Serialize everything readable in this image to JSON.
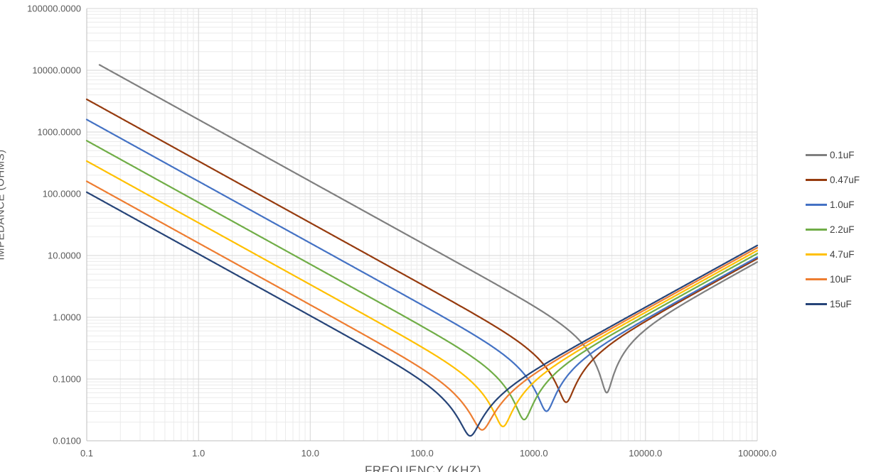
{
  "chart_data": {
    "type": "line",
    "title": "",
    "xlabel": "FREQUENCY (KHZ)",
    "ylabel": "IMPEDANCE (OHMS)",
    "x_scale": "log",
    "y_scale": "log",
    "xlim": [
      0.1,
      100000
    ],
    "ylim": [
      0.01,
      100000
    ],
    "grid": {
      "major": true,
      "minor": true,
      "major_color": "#D6D6D6",
      "minor_color": "#EBEBEB",
      "axis_line_color": "#BFBFBF"
    },
    "legend_position": "right",
    "x_ticks": [
      {
        "v": 0.1,
        "label": "0.1"
      },
      {
        "v": 1,
        "label": "1.0"
      },
      {
        "v": 10,
        "label": "10.0"
      },
      {
        "v": 100,
        "label": "100.0"
      },
      {
        "v": 1000,
        "label": "1000.0"
      },
      {
        "v": 10000,
        "label": "10000.0"
      },
      {
        "v": 100000,
        "label": "100000.0"
      }
    ],
    "y_ticks": [
      {
        "v": 100000,
        "label": "100000.0000"
      },
      {
        "v": 10000,
        "label": "10000.0000"
      },
      {
        "v": 1000,
        "label": "1000.0000"
      },
      {
        "v": 100,
        "label": "100.0000"
      },
      {
        "v": 10,
        "label": "10.0000"
      },
      {
        "v": 1,
        "label": "1.0000"
      },
      {
        "v": 0.1,
        "label": "0.1000"
      },
      {
        "v": 0.01,
        "label": "0.0100"
      }
    ],
    "model": "Each curve is the impedance magnitude of a series RLC capacitor model versus frequency x in kHz: Z(x) = sqrt(esr_ohms^2 + (A/x - B*x)^2), where A = 159.155 / capacitance_uF (capacitive reactance coefficient) and B = A / srf_khz^2 (inductive reactance coefficient). Curves fall at -1 slope (capacitive), dip to esr_ohms at the self-resonant frequency srf_khz, then rise at +1 slope (inductive).",
    "series": [
      {
        "label": "0.1uF",
        "color": "#7F7F7F",
        "capacitance_uF": 0.1,
        "esr_ohms": 0.06,
        "srf_khz": 4500,
        "x_start_khz": 0.13,
        "z_at_xmin_ohms": 12243,
        "z_at_xmax_ohms": 7.9
      },
      {
        "label": "0.47uF",
        "color": "#963B0E",
        "capacitance_uF": 0.47,
        "esr_ohms": 0.042,
        "srf_khz": 1950,
        "x_start_khz": 0.1,
        "z_at_xmin_ohms": 3386,
        "z_at_xmax_ohms": 8.9
      },
      {
        "label": "1.0uF",
        "color": "#4472C4",
        "capacitance_uF": 1.0,
        "esr_ohms": 0.03,
        "srf_khz": 1300,
        "x_start_khz": 0.1,
        "z_at_xmin_ohms": 1592,
        "z_at_xmax_ohms": 9.4
      },
      {
        "label": "2.2uF",
        "color": "#70AD47",
        "capacitance_uF": 2.2,
        "esr_ohms": 0.022,
        "srf_khz": 820,
        "x_start_khz": 0.1,
        "z_at_xmin_ohms": 723,
        "z_at_xmax_ohms": 10.8
      },
      {
        "label": "4.7uF",
        "color": "#FFC000",
        "capacitance_uF": 4.7,
        "esr_ohms": 0.017,
        "srf_khz": 530,
        "x_start_khz": 0.1,
        "z_at_xmin_ohms": 339,
        "z_at_xmax_ohms": 12.1
      },
      {
        "label": "10uF",
        "color": "#ED7D31",
        "capacitance_uF": 10,
        "esr_ohms": 0.015,
        "srf_khz": 345,
        "x_start_khz": 0.1,
        "z_at_xmin_ohms": 159,
        "z_at_xmax_ohms": 13.4
      },
      {
        "label": "15uF",
        "color": "#264478",
        "capacitance_uF": 15,
        "esr_ohms": 0.012,
        "srf_khz": 270,
        "x_start_khz": 0.1,
        "z_at_xmin_ohms": 106,
        "z_at_xmax_ohms": 14.6
      }
    ]
  }
}
